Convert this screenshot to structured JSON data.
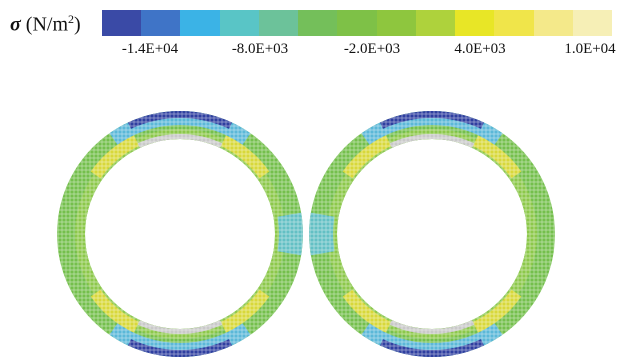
{
  "legend": {
    "symbol": "σ",
    "unit_prefix": "(N/m",
    "unit_exp": "2",
    "unit_suffix": ")",
    "colors": [
      "#3a4aa6",
      "#3f74c7",
      "#3bb3e6",
      "#59c5c6",
      "#6cc29a",
      "#74bf5a",
      "#7ec147",
      "#8ec63e",
      "#aed23c",
      "#e8e626",
      "#f0e54a",
      "#f4e98a",
      "#f6efb6"
    ],
    "ticks": [
      "-1.4E+04",
      "-8.0E+03",
      "-2.0E+03",
      "4.0E+03",
      "1.0E+04"
    ]
  },
  "figure": {
    "rings": [
      {
        "name": "left-ring"
      },
      {
        "name": "right-ring"
      }
    ]
  }
}
